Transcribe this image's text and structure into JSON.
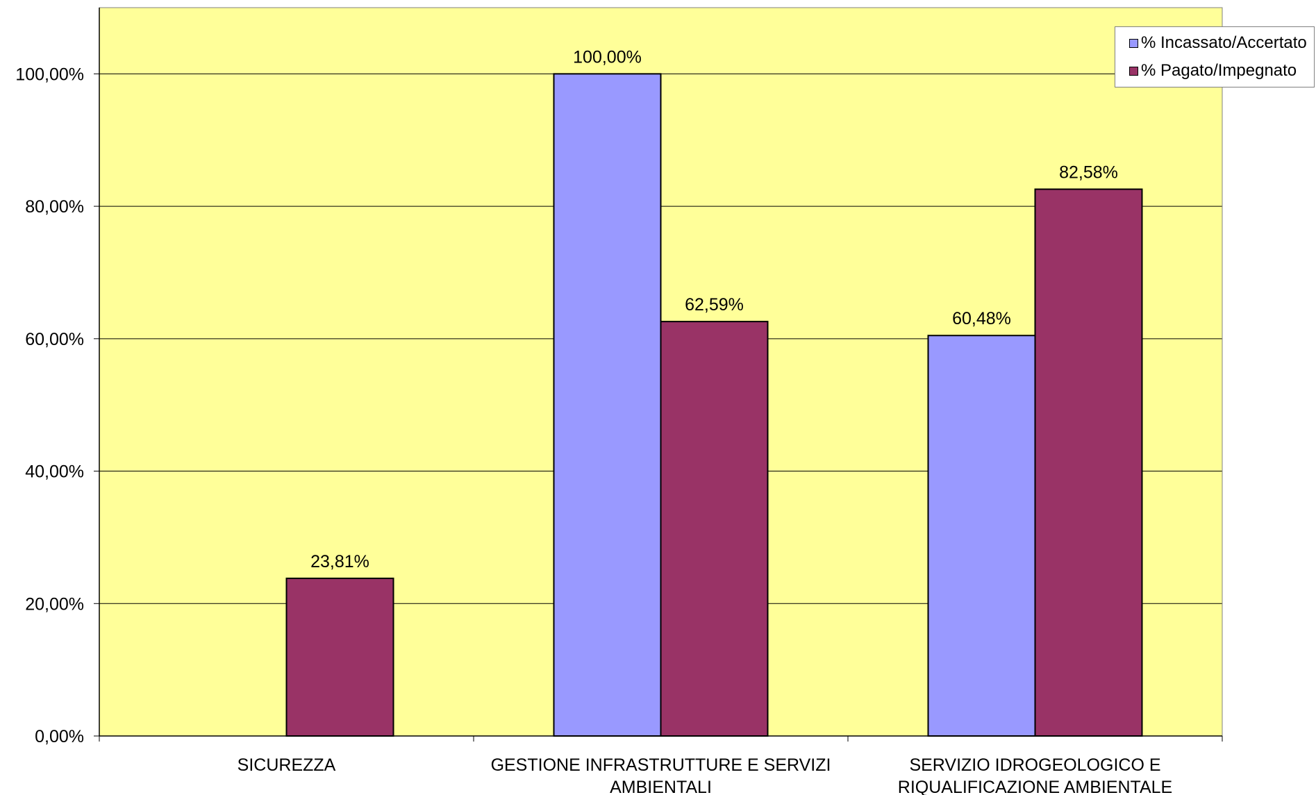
{
  "chart_data": {
    "type": "bar",
    "categories": [
      [
        "SICUREZZA"
      ],
      [
        "GESTIONE INFRASTRUTTURE E SERVIZI",
        "AMBIENTALI"
      ],
      [
        "SERVIZIO IDROGEOLOGICO E",
        "RIQUALIFICAZIONE AMBIENTALE"
      ]
    ],
    "series": [
      {
        "name": "% Incassato/Accertato",
        "color": "#9999FF",
        "values": [
          null,
          100.0,
          60.48
        ],
        "labels": [
          "",
          "100,00%",
          "60,48%"
        ]
      },
      {
        "name": "% Pagato/Impegnato",
        "color": "#993366",
        "values": [
          23.81,
          62.59,
          82.58
        ],
        "labels": [
          "23,81%",
          "62,59%",
          "82,58%"
        ]
      }
    ],
    "ylim": [
      0,
      110
    ],
    "yticks": [
      0,
      20,
      40,
      60,
      80,
      100
    ],
    "ytick_labels": [
      "0,00%",
      "20,00%",
      "40,00%",
      "60,00%",
      "80,00%",
      "100,00%"
    ],
    "title": "",
    "xlabel": "",
    "ylabel": "",
    "grid": true,
    "legend_position": "top-right",
    "plot_background": "#FFFF99"
  }
}
